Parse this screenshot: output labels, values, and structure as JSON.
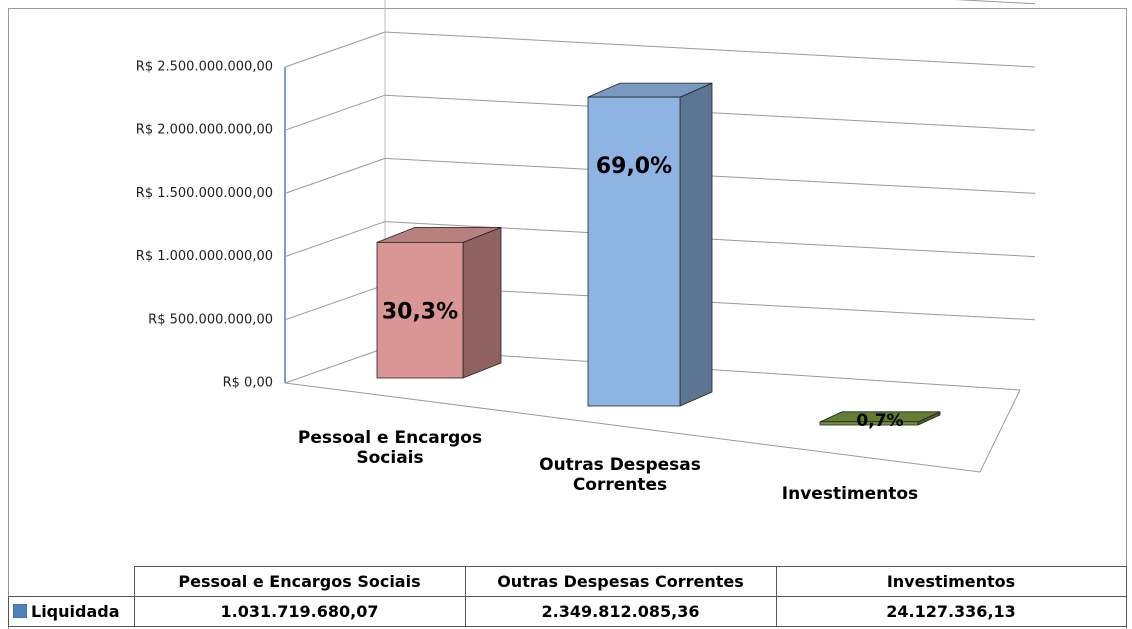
{
  "chart_data": {
    "type": "bar",
    "categories": [
      "Pessoal e Encargos Sociais",
      "Outras Despesas Correntes",
      "Investimentos"
    ],
    "series": [
      {
        "name": "Liquidada",
        "color": "#4f81bd",
        "values": [
          1031719680.07,
          2349812085.36,
          24127336.13
        ],
        "value_labels": [
          "1.031.719.680,07",
          "2.349.812.085,36",
          "24.127.336,13"
        ],
        "point_colors": [
          "#d99694",
          "#8db4e2",
          "#77933c"
        ]
      }
    ],
    "shares": [
      30.3,
      69.0,
      0.7
    ],
    "share_labels": [
      "30,3%",
      "69,0%",
      "0,7%"
    ],
    "ylim": [
      0,
      3000000000
    ],
    "yticks": [
      {
        "value": 0,
        "label": "R$ 0,00"
      },
      {
        "value": 500000000,
        "label": "R$ 500.000.000,00"
      },
      {
        "value": 1000000000,
        "label": "R$ 1.000.000.000,00"
      },
      {
        "value": 1500000000,
        "label": "R$ 1.500.000.000,00"
      },
      {
        "value": 2000000000,
        "label": "R$ 2.000.000.000,00"
      },
      {
        "value": 2500000000,
        "label": "R$ 2.500.000.000,00"
      }
    ],
    "grid": true
  }
}
